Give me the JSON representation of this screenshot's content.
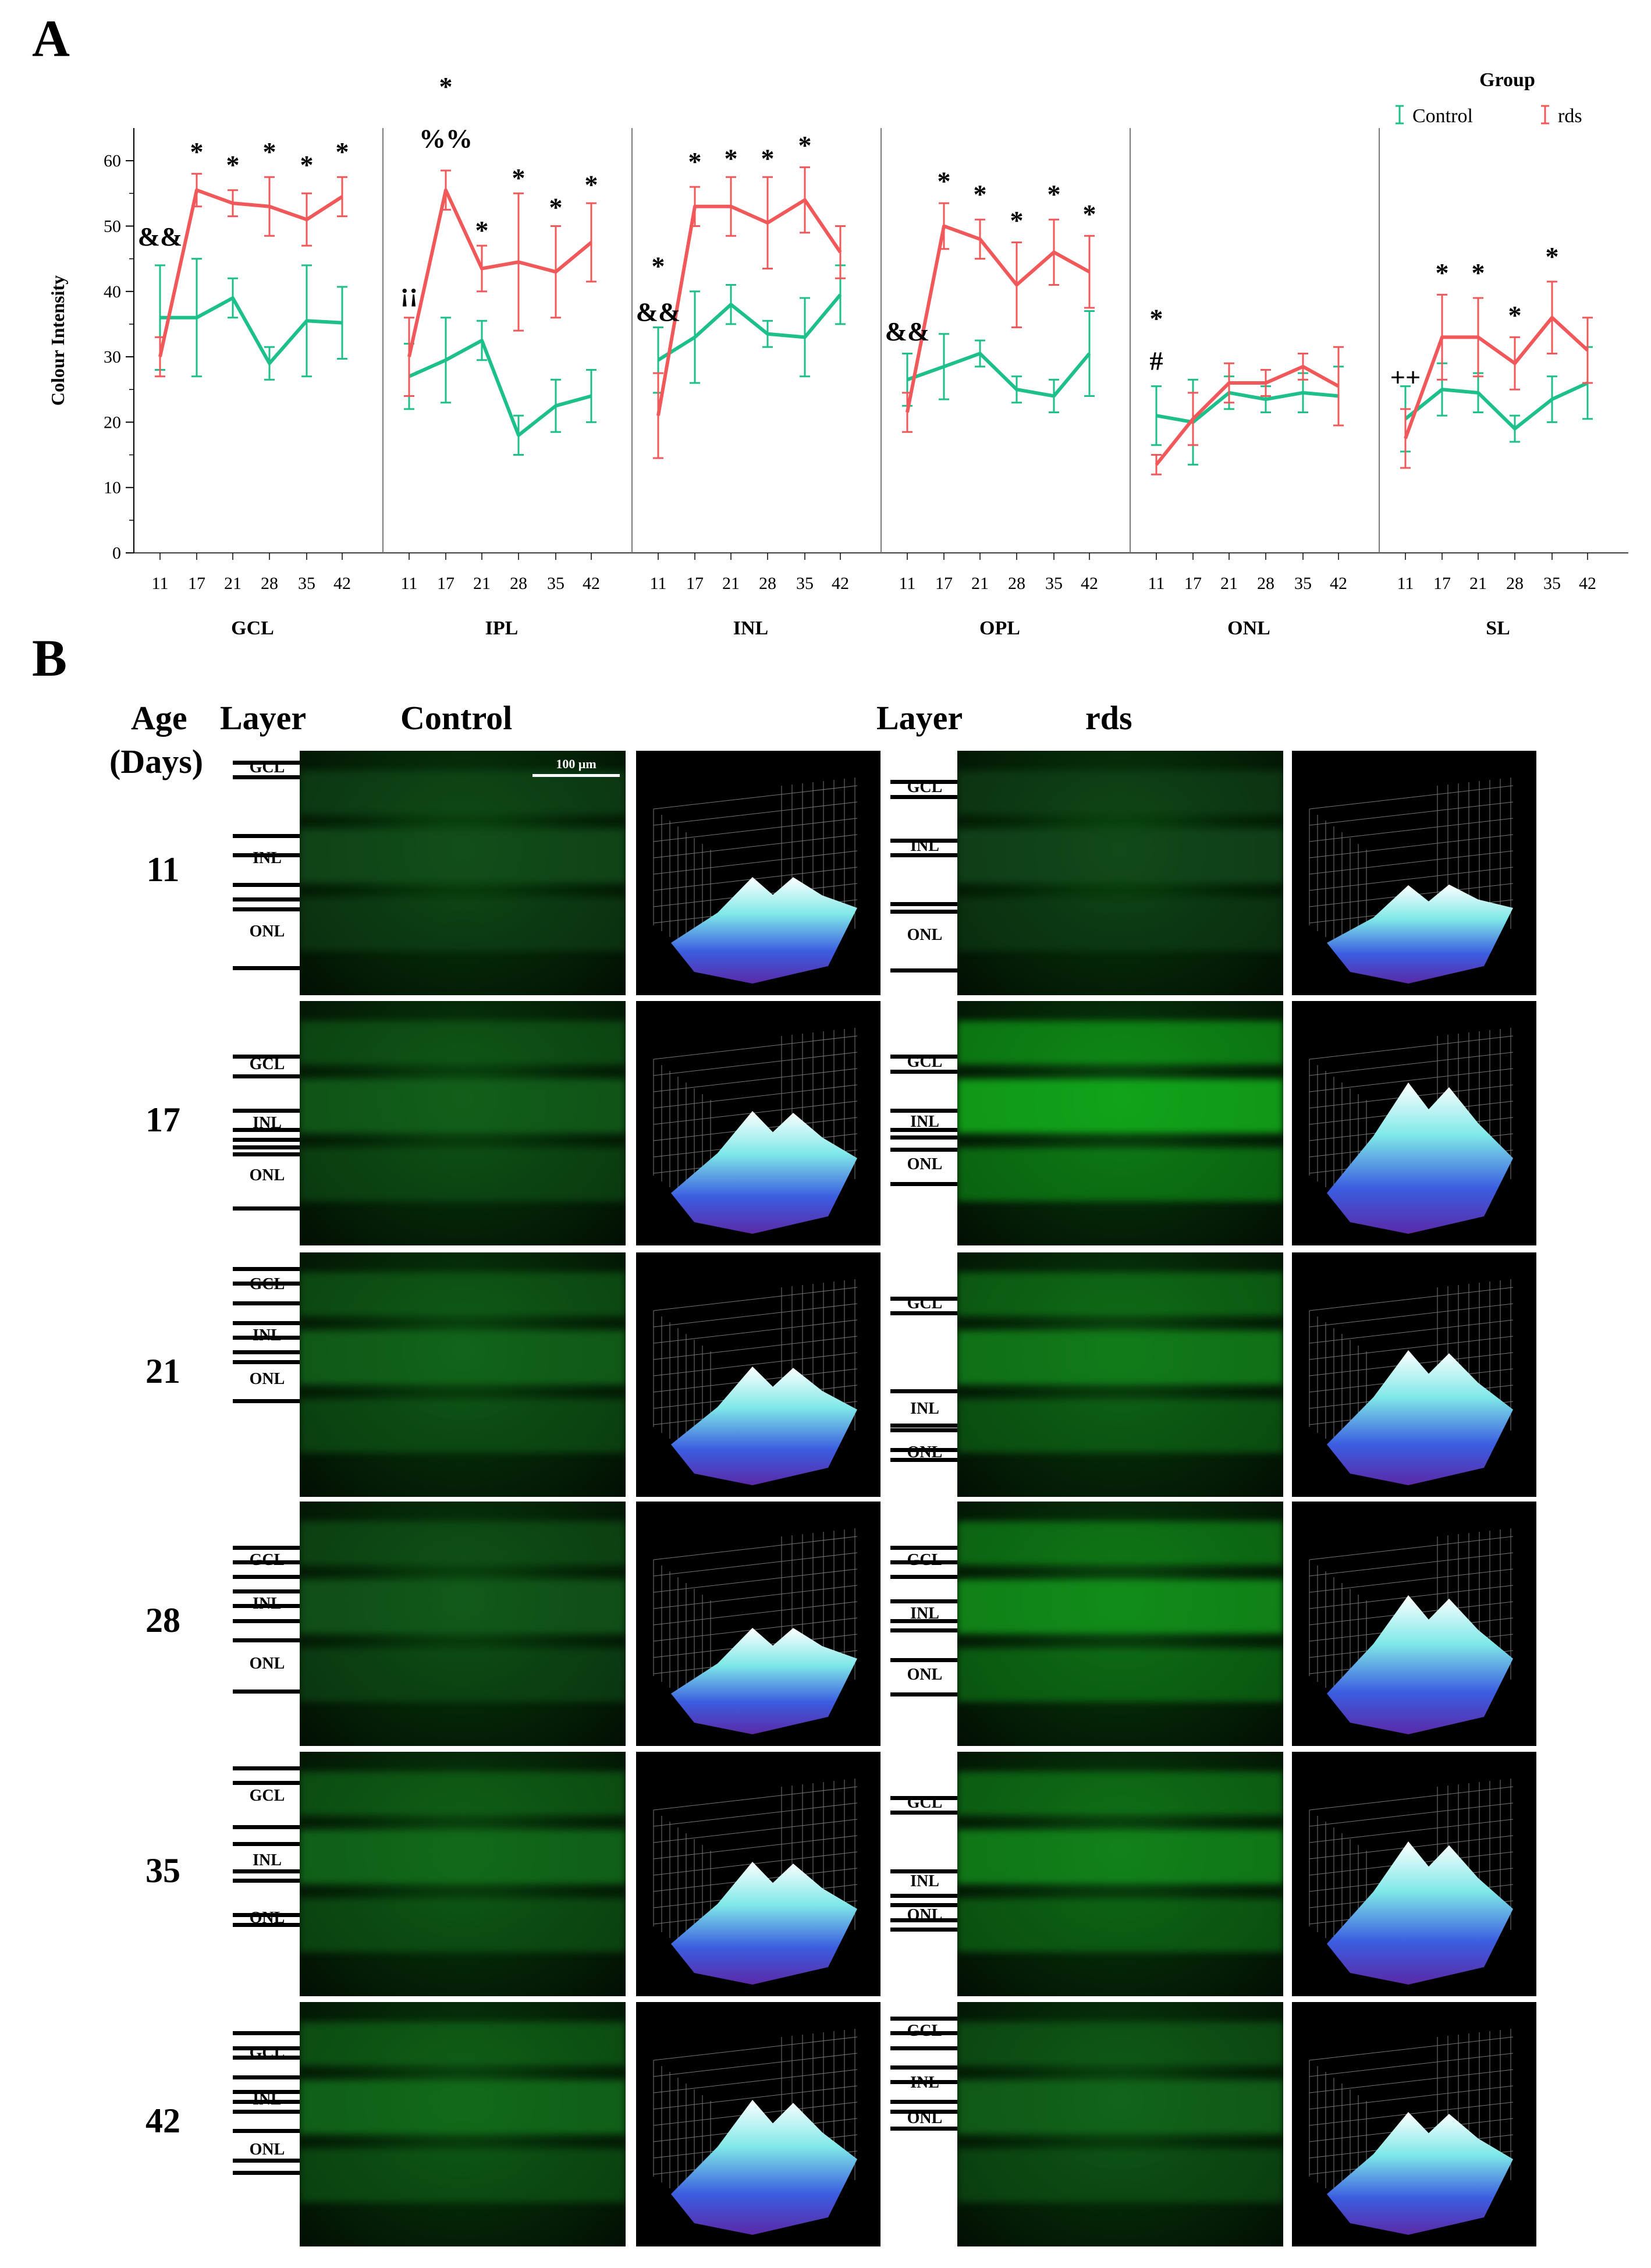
{
  "panel_a_label": "A",
  "panel_b_label": "B",
  "chart_data": {
    "type": "line",
    "ylabel": "Colour Intensity",
    "ylim": [
      0,
      65
    ],
    "yticks": [
      0,
      10,
      20,
      30,
      40,
      50,
      60
    ],
    "x_ticks": [
      "11",
      "17",
      "21",
      "28",
      "35",
      "42"
    ],
    "legend_title": "Group",
    "colors": {
      "control": "#1dbf8a",
      "rds": "#f0585a"
    },
    "series_names": [
      "Control",
      "rds"
    ],
    "panels": [
      {
        "name": "GCL",
        "control": [
          36,
          36,
          39,
          29,
          35.5,
          35.2
        ],
        "control_err": [
          8,
          9,
          3,
          2.5,
          8.5,
          5.5
        ],
        "rds": [
          30,
          55.5,
          53.5,
          53,
          51,
          54.5
        ],
        "rds_err": [
          3,
          2.5,
          2,
          4.5,
          4,
          3
        ],
        "annotations": [
          {
            "day": "11",
            "y": 47,
            "text": "&&"
          },
          {
            "day": "17",
            "y": 60,
            "text": "*"
          },
          {
            "day": "21",
            "y": 58,
            "text": "*"
          },
          {
            "day": "28",
            "y": 60,
            "text": "*"
          },
          {
            "day": "35",
            "y": 58,
            "text": "*"
          },
          {
            "day": "42",
            "y": 60,
            "text": "*"
          }
        ]
      },
      {
        "name": "IPL",
        "control": [
          27,
          29.5,
          32.5,
          18,
          22.5,
          24
        ],
        "control_err": [
          5,
          6.5,
          3,
          3,
          4,
          4
        ],
        "rds": [
          30,
          55.5,
          43.5,
          44.5,
          43,
          47.5
        ],
        "rds_err": [
          6,
          3,
          3.5,
          10.5,
          7,
          6
        ],
        "annotations": [
          {
            "day": "11",
            "y": 38.5,
            "text": "¡¡"
          },
          {
            "day": "17",
            "y": 70,
            "text": "*"
          },
          {
            "day": "17",
            "y": 62,
            "text": "%%"
          },
          {
            "day": "21",
            "y": 48,
            "text": "*"
          },
          {
            "day": "28",
            "y": 56,
            "text": "*"
          },
          {
            "day": "35",
            "y": 51.5,
            "text": "*"
          },
          {
            "day": "42",
            "y": 55,
            "text": "*"
          }
        ]
      },
      {
        "name": "INL",
        "control": [
          29.5,
          33,
          38,
          33.5,
          33,
          39.5
        ],
        "control_err": [
          5,
          7,
          3,
          2,
          6,
          4.5
        ],
        "rds": [
          21,
          53,
          53,
          50.5,
          54,
          46
        ],
        "rds_err": [
          6.5,
          3,
          4.5,
          7,
          5,
          4
        ],
        "annotations": [
          {
            "day": "11",
            "y": 42.5,
            "text": "*"
          },
          {
            "day": "11",
            "y": 35.5,
            "text": "&&"
          },
          {
            "day": "17",
            "y": 58.5,
            "text": "*"
          },
          {
            "day": "21",
            "y": 59,
            "text": "*"
          },
          {
            "day": "28",
            "y": 59,
            "text": "*"
          },
          {
            "day": "35",
            "y": 61,
            "text": "*"
          }
        ]
      },
      {
        "name": "OPL",
        "control": [
          26.5,
          28.5,
          30.5,
          25,
          24,
          30.5
        ],
        "control_err": [
          4,
          5,
          2,
          2,
          2.5,
          6.5
        ],
        "rds": [
          21.5,
          50,
          48,
          41,
          46,
          43
        ],
        "rds_err": [
          3,
          3.5,
          3,
          6.5,
          5,
          5.5
        ],
        "annotations": [
          {
            "day": "11",
            "y": 32.5,
            "text": "&&"
          },
          {
            "day": "17",
            "y": 55.5,
            "text": "*"
          },
          {
            "day": "21",
            "y": 53.5,
            "text": "*"
          },
          {
            "day": "28",
            "y": 49.5,
            "text": "*"
          },
          {
            "day": "35",
            "y": 53.5,
            "text": "*"
          },
          {
            "day": "42",
            "y": 50.5,
            "text": "*"
          }
        ]
      },
      {
        "name": "ONL",
        "control": [
          21,
          20,
          24.5,
          23.5,
          24.5,
          24
        ],
        "control_err": [
          4.5,
          6.5,
          2.5,
          2,
          3,
          4.5
        ],
        "rds": [
          13.5,
          20.5,
          26,
          26,
          28.5,
          25.5
        ],
        "rds_err": [
          1.5,
          4,
          3,
          2,
          2,
          6
        ],
        "annotations": [
          {
            "day": "11",
            "y": 34.5,
            "text": "*"
          },
          {
            "day": "11",
            "y": 28,
            "text": "#"
          }
        ]
      },
      {
        "name": "SL",
        "control": [
          20.5,
          25,
          24.5,
          19,
          23.5,
          26
        ],
        "control_err": [
          5,
          4,
          3,
          2,
          3.5,
          5.5
        ],
        "rds": [
          17.5,
          33,
          33,
          29,
          36,
          31
        ],
        "rds_err": [
          4.5,
          6.5,
          6,
          4,
          5.5,
          5
        ],
        "annotations": [
          {
            "day": "11",
            "y": 25.5,
            "text": "++"
          },
          {
            "day": "17",
            "y": 41.5,
            "text": "*"
          },
          {
            "day": "21",
            "y": 41.5,
            "text": "*"
          },
          {
            "day": "28",
            "y": 35,
            "text": "*"
          },
          {
            "day": "35",
            "y": 44,
            "text": "*"
          }
        ]
      }
    ]
  },
  "panel_b": {
    "header_age": "Age",
    "header_days": "(Days)",
    "header_layer_left": "Layer",
    "header_control": "Control",
    "header_layer_right": "Layer",
    "header_rds": "rds",
    "scale_bar": "100 μm",
    "layer_labels": [
      "GCL",
      "INL",
      "ONL"
    ],
    "ages": [
      "11",
      "17",
      "21",
      "28",
      "35",
      "42"
    ]
  }
}
